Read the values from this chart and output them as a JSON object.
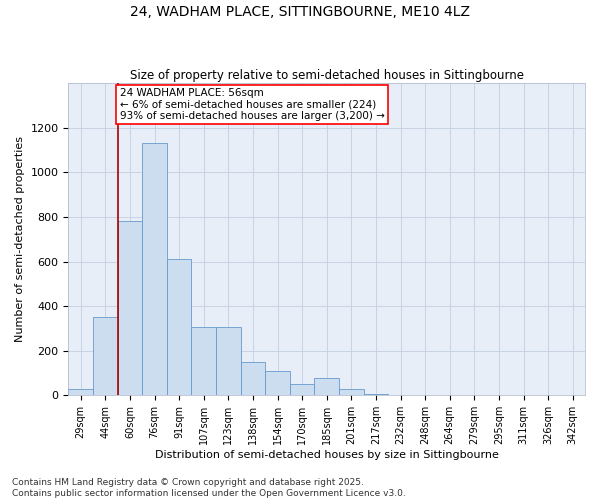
{
  "title": "24, WADHAM PLACE, SITTINGBOURNE, ME10 4LZ",
  "subtitle": "Size of property relative to semi-detached houses in Sittingbourne",
  "xlabel": "Distribution of semi-detached houses by size in Sittingbourne",
  "ylabel": "Number of semi-detached properties",
  "categories": [
    "29sqm",
    "44sqm",
    "60sqm",
    "76sqm",
    "91sqm",
    "107sqm",
    "123sqm",
    "138sqm",
    "154sqm",
    "170sqm",
    "185sqm",
    "201sqm",
    "217sqm",
    "232sqm",
    "248sqm",
    "264sqm",
    "279sqm",
    "295sqm",
    "311sqm",
    "326sqm",
    "342sqm"
  ],
  "values": [
    30,
    350,
    780,
    1130,
    610,
    305,
    305,
    150,
    110,
    50,
    80,
    30,
    5,
    0,
    0,
    0,
    0,
    0,
    0,
    0,
    0
  ],
  "bar_color": "#ccddf0",
  "bar_edge_color": "#6699cc",
  "grid_color": "#c8d4e4",
  "background_color": "#e8eef8",
  "annotation_box_text": "24 WADHAM PLACE: 56sqm\n← 6% of semi-detached houses are smaller (224)\n93% of semi-detached houses are larger (3,200) →",
  "vline_x": 1.5,
  "vline_color": "#aa0000",
  "ylim": [
    0,
    1400
  ],
  "yticks": [
    0,
    200,
    400,
    600,
    800,
    1000,
    1200
  ],
  "footer_text": "Contains HM Land Registry data © Crown copyright and database right 2025.\nContains public sector information licensed under the Open Government Licence v3.0.",
  "title_fontsize": 10,
  "subtitle_fontsize": 8.5,
  "annotation_fontsize": 7.5,
  "footer_fontsize": 6.5
}
